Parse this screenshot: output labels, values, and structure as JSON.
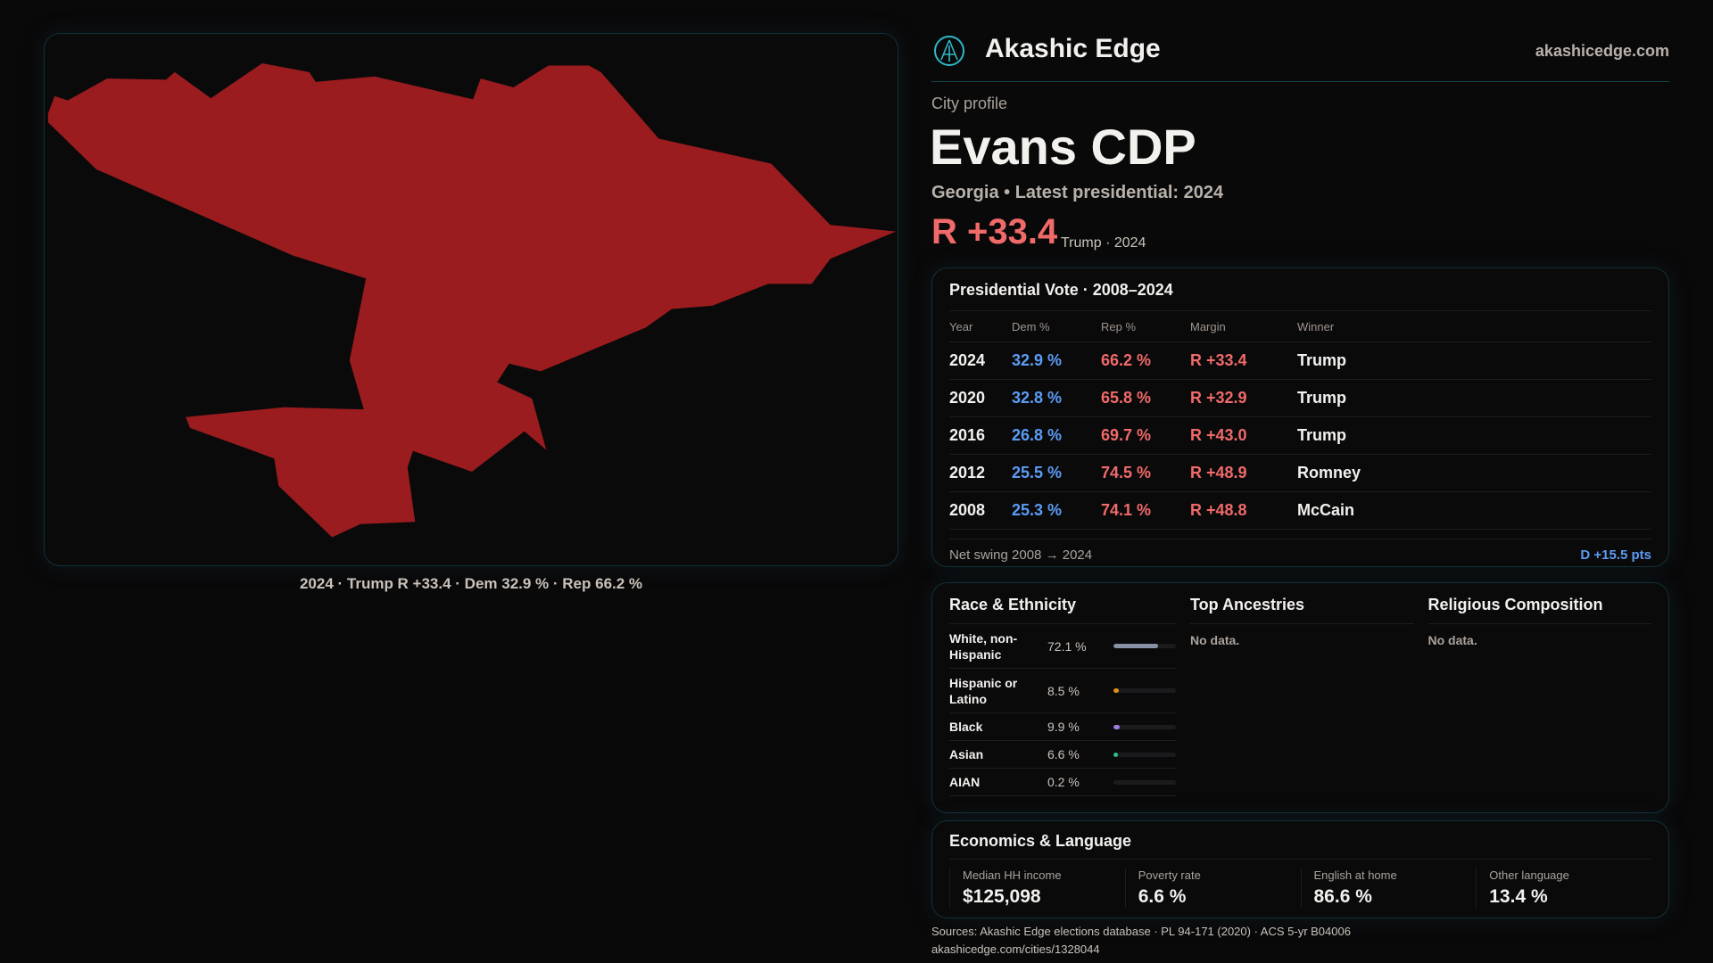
{
  "brand": {
    "name": "Akashic Edge",
    "site": "akashicedge.com",
    "logo_icon": "akashic-logo-icon"
  },
  "profile": {
    "kicker": "City profile",
    "city": "Evans CDP",
    "subtitle": "Georgia • Latest presidential: 2024",
    "margin": "R +33.4",
    "margin_note": "Trump · 2024"
  },
  "map": {
    "caption": "2024 · Trump R +33.4 · Dem 32.9 % · Rep 66.2 %",
    "fill": "#9b1c1f"
  },
  "presidential": {
    "title": "Presidential Vote · 2008–2024",
    "headers": [
      "Year",
      "Dem %",
      "Rep %",
      "Margin",
      "Winner"
    ],
    "rows": [
      [
        "2024",
        "32.9 %",
        "66.2 %",
        "R +33.4",
        "Trump"
      ],
      [
        "2020",
        "32.8 %",
        "65.8 %",
        "R +32.9",
        "Trump"
      ],
      [
        "2016",
        "26.8 %",
        "69.7 %",
        "R +43.0",
        "Trump"
      ],
      [
        "2012",
        "25.5 %",
        "74.5 %",
        "R +48.9",
        "Romney"
      ],
      [
        "2008",
        "25.3 %",
        "74.1 %",
        "R +48.8",
        "McCain"
      ]
    ],
    "swing_label": "Net swing 2008 → 2024",
    "swing_value": "D +15.5 pts"
  },
  "race": {
    "title": "Race & Ethnicity",
    "rows": [
      {
        "label": "White, non-Hispanic",
        "pct": "72.1 %",
        "value": 72.1,
        "color": "#8892a4"
      },
      {
        "label": "Hispanic or Latino",
        "pct": "8.5 %",
        "value": 8.5,
        "color": "#e0901c"
      },
      {
        "label": "Black",
        "pct": "9.9 %",
        "value": 9.9,
        "color": "#9a80e0"
      },
      {
        "label": "Asian",
        "pct": "6.6 %",
        "value": 6.6,
        "color": "#2cc38a"
      },
      {
        "label": "AIAN",
        "pct": "0.2 %",
        "value": 0.2,
        "color": "#555"
      }
    ]
  },
  "ancestries": {
    "title": "Top Ancestries",
    "empty": "No data."
  },
  "religion": {
    "title": "Religious Composition",
    "empty": "No data."
  },
  "econ": {
    "title": "Economics & Language",
    "stats": [
      {
        "label": "Median HH income",
        "value": "$125,098"
      },
      {
        "label": "Poverty rate",
        "value": "6.6 %"
      },
      {
        "label": "English at home",
        "value": "86.6 %"
      },
      {
        "label": "Other language",
        "value": "13.4 %"
      }
    ]
  },
  "footer": {
    "sources": "Sources: Akashic Edge elections database · PL 94-171 (2020) · ACS 5-yr B04006",
    "url": "akashicedge.com/cities/1328044"
  }
}
